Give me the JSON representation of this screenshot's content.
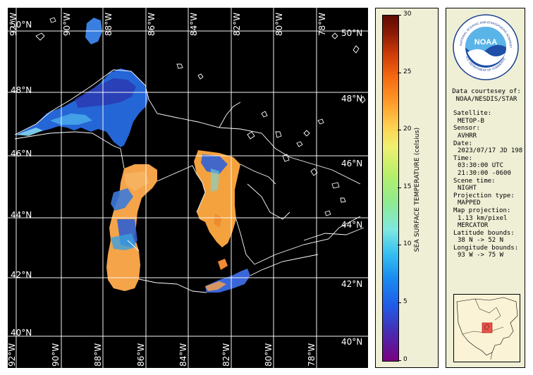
{
  "map": {
    "lat_labels": [
      "50°N",
      "48°N",
      "46°N",
      "44°N",
      "42°N",
      "40°N"
    ],
    "lat_labels_right": [
      "50°N",
      "48°N",
      "46°N",
      "44°N",
      "42°N",
      "40°N"
    ],
    "lon_labels_top": [
      "92°W",
      "90°W",
      "88°W",
      "86°W",
      "84°W",
      "82°W",
      "80°W",
      "78°W"
    ],
    "lon_labels_bottom": [
      "92°W",
      "90°W",
      "88°W",
      "86°W",
      "84°W",
      "82°W",
      "80°W",
      "78°W"
    ],
    "colors": {
      "superior": "#2a6fe0",
      "superior_deep": "#2a2aa8",
      "michigan": "#f5a44a",
      "huron": "#f4a23e",
      "erie": "#3b66d8",
      "ontario": "#000000",
      "land": "#000000",
      "lines": "#ffffff"
    }
  },
  "colorbar": {
    "title": "SEA SURFACE TEMPERATURE (celsius)",
    "ticks": [
      "30",
      "25",
      "20",
      "15",
      "10",
      "5",
      "0"
    ],
    "range": [
      0,
      30
    ]
  },
  "info": {
    "credit_label": "Data courtesey of:",
    "credit_value": "NOAA/NESDIS/STAR",
    "satellite_label": "Satellite:",
    "satellite_value": "METOP-B",
    "sensor_label": "Sensor:",
    "sensor_value": "AVHRR",
    "date_label": "Date:",
    "date_value": "2023/07/17 JD 198",
    "time_label": "Time:",
    "time_value_utc": "03:30:00 UTC",
    "time_value_local": "21:30:00 -0600",
    "scene_label": "Scene time:",
    "scene_value": "NIGHT",
    "projection_type_label": "Projection type:",
    "projection_type_value": "MAPPED",
    "map_projection_label": "Map projection:",
    "map_projection_res": "1.13 km/pixel",
    "map_projection_value": "MERCATOR",
    "lat_bounds_label": "Latitude bounds:",
    "lat_bounds_value": "38 N -> 52 N",
    "lon_bounds_label": "Longitude bounds:",
    "lon_bounds_value": "93 W -> 75 W"
  },
  "logo": {
    "name": "noaa-logo",
    "center_text": "NOAA",
    "ring_text": "NATIONAL OCEANIC AND ATMOSPHERIC ADMINISTRATION",
    "ring_text_bottom": "U.S. DEPARTMENT OF COMMERCE"
  }
}
